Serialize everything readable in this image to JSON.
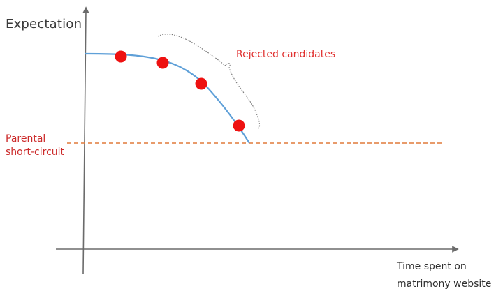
{
  "diagram": {
    "y_axis_label": "Expectation",
    "x_axis_label": [
      "Time spent on",
      "matrimony website"
    ],
    "threshold_label": [
      "Parental",
      "short-circuit"
    ],
    "annotation_label": "Rejected candidates",
    "candidate_count": 4
  },
  "colors": {
    "axis": "#6b6b6b",
    "curve": "#5fa0d8",
    "points": "#ee1111",
    "threshold_line": "#e07a3a",
    "annotation_text": "#e0302f",
    "threshold_text": "#cc2b2b",
    "bracket": "#777777"
  }
}
